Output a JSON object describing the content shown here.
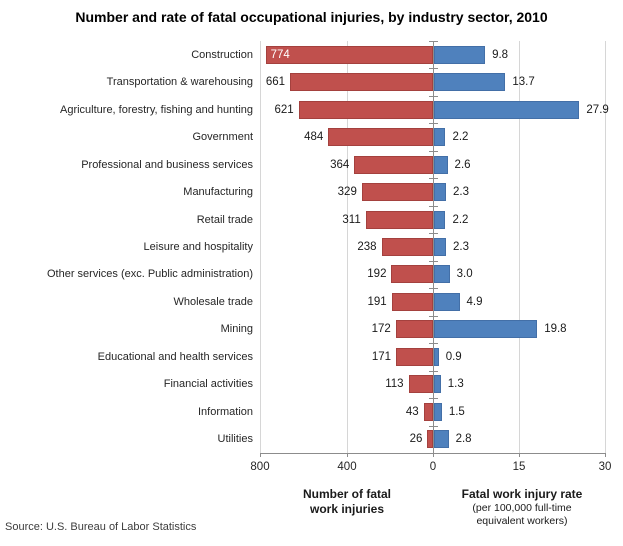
{
  "title": "Number and rate of fatal occupational injuries, by industry sector, 2010",
  "source": "Source: U.S. Bureau of Labor Statistics",
  "chart_data": {
    "type": "bar",
    "orientation": "horizontal-tornado",
    "grid": true,
    "legend": "none",
    "title": "Number and rate of fatal occupational injuries, by industry sector, 2010",
    "categories": [
      "Construction",
      "Transportation & warehousing",
      "Agriculture, forestry, fishing and hunting",
      "Government",
      "Professional and business services",
      "Manufacturing",
      "Retail trade",
      "Leisure and hospitality",
      "Other services (exc. Public administration)",
      "Wholesale trade",
      "Mining",
      "Educational and health services",
      "Financial activities",
      "Information",
      "Utilities"
    ],
    "series": [
      {
        "name": "Number of fatal work injuries",
        "side": "left",
        "color": "#C0504D",
        "axis_max": 800,
        "values": [
          774,
          661,
          621,
          484,
          364,
          329,
          311,
          238,
          192,
          191,
          172,
          171,
          113,
          43,
          26
        ],
        "value_labels": [
          "774",
          "661",
          "621",
          "484",
          "364",
          "329",
          "311",
          "238",
          "192",
          "191",
          "172",
          "171",
          "113",
          "43",
          "26"
        ]
      },
      {
        "name": "Fatal work injury rate",
        "side": "right",
        "color": "#4F81BD",
        "axis_max": 30,
        "values": [
          9.8,
          13.7,
          27.9,
          2.2,
          2.6,
          2.3,
          2.2,
          2.3,
          3.0,
          4.9,
          19.8,
          0.9,
          1.3,
          1.5,
          2.8
        ],
        "value_labels": [
          "9.8",
          "13.7",
          "27.9",
          "2.2",
          "2.6",
          "2.3",
          "2.2",
          "2.3",
          "3.0",
          "4.9",
          "19.8",
          "0.9",
          "1.3",
          "1.5",
          "2.8"
        ]
      }
    ],
    "x_tick_labels": [
      "800",
      "400",
      "0",
      "15",
      "30"
    ],
    "left_axis_label_lines": [
      "Number of fatal",
      "work injuries"
    ],
    "right_axis_label": "Fatal work injury rate",
    "right_axis_sublabel_lines": [
      "(per 100,000 full-time",
      "equivalent workers)"
    ]
  }
}
